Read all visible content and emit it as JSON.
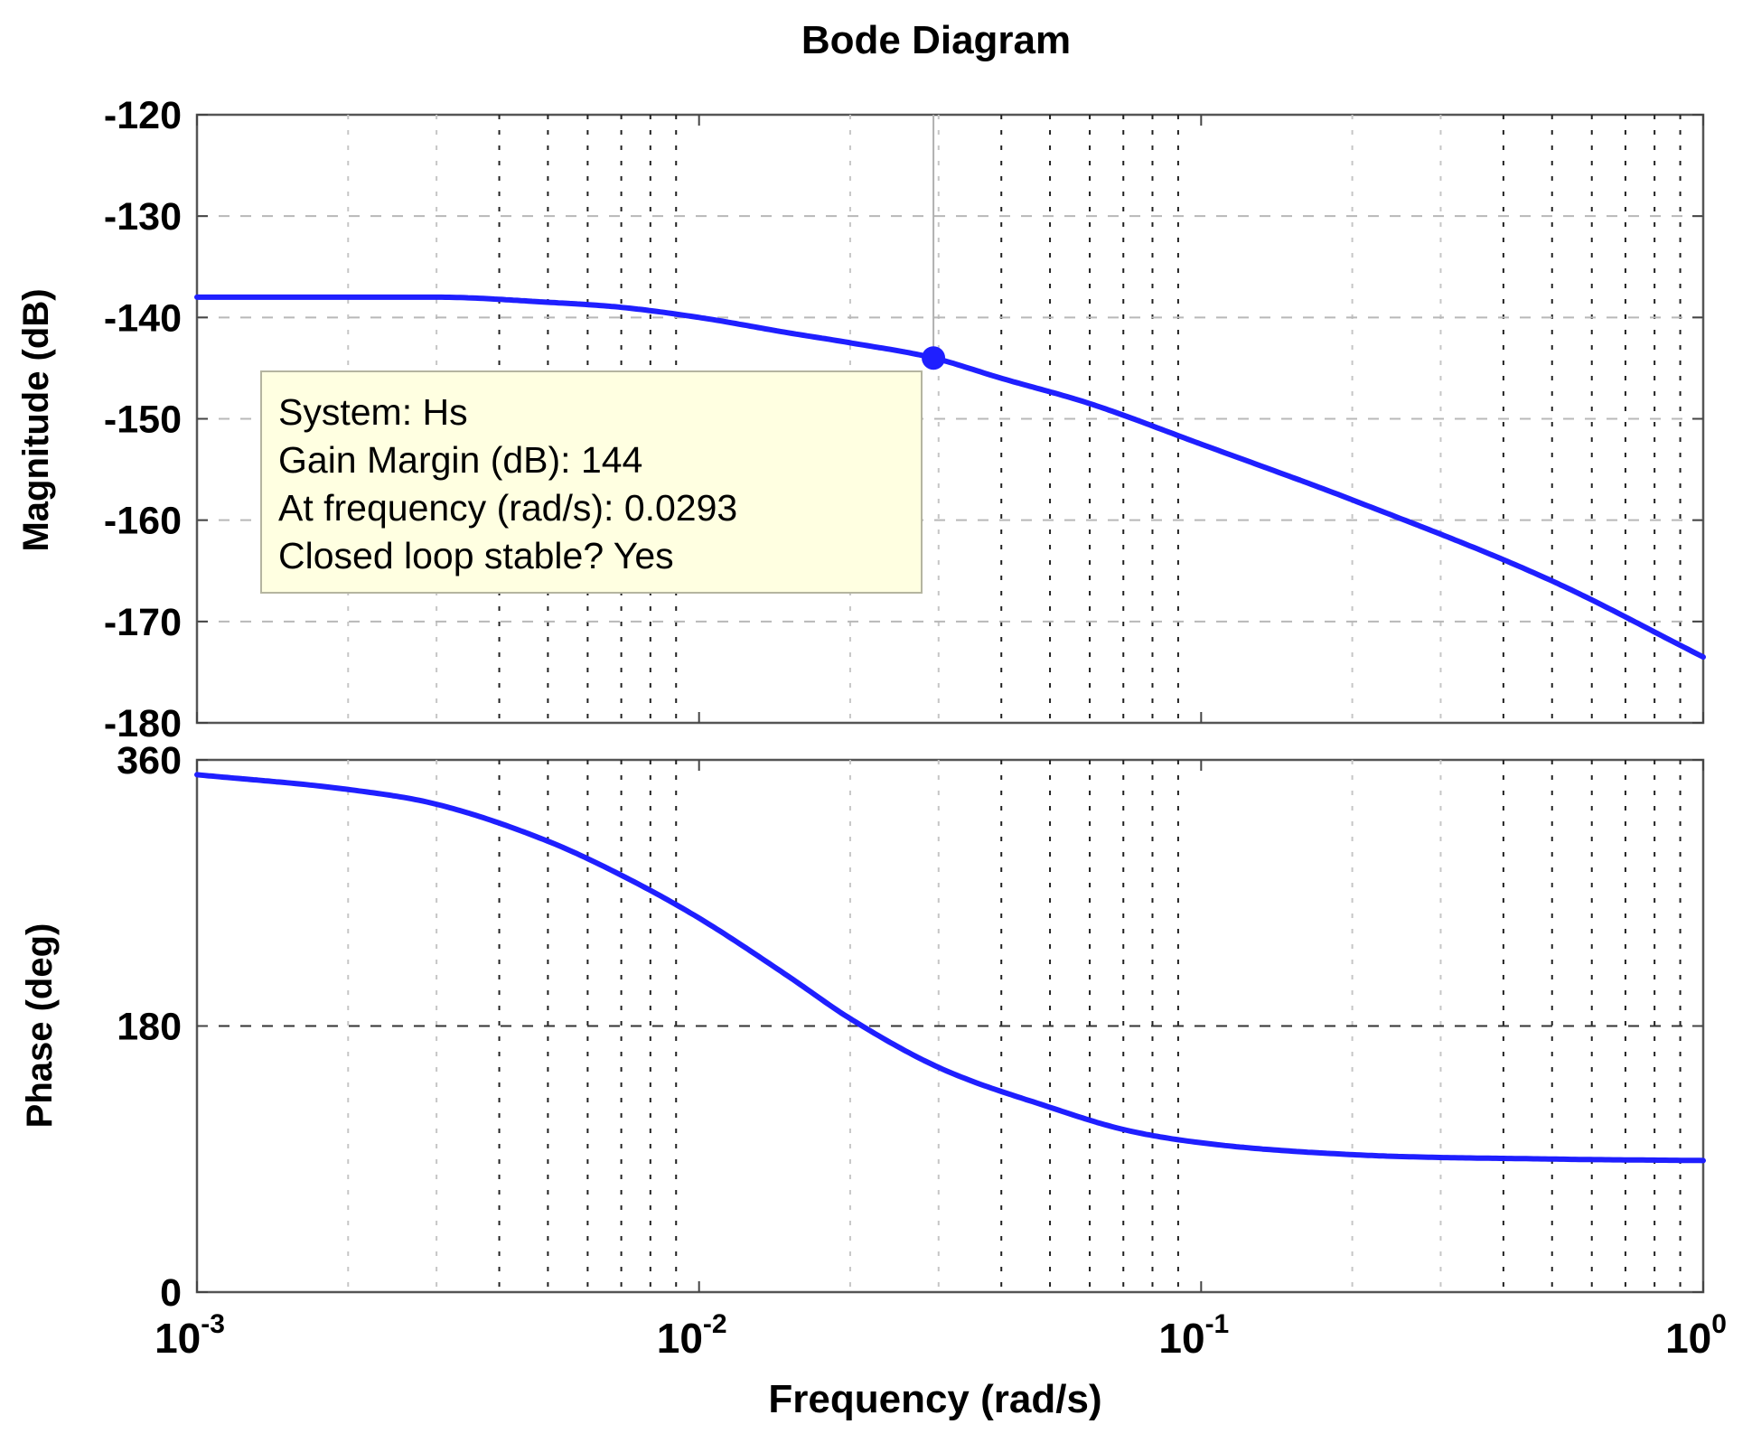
{
  "chart_data": {
    "type": "line",
    "title": "Bode Diagram",
    "xlabel": "Frequency  (rad/s)",
    "xscale": "log",
    "xlim": [
      0.001,
      1
    ],
    "x_ticks": [
      {
        "base": "10",
        "exp": "-3"
      },
      {
        "base": "10",
        "exp": "-2"
      },
      {
        "base": "10",
        "exp": "-1"
      },
      {
        "base": "10",
        "exp": "0"
      }
    ],
    "grid": true,
    "curve_color": "#1f1fff",
    "panels": [
      {
        "name": "magnitude",
        "ylabel": "Magnitude (dB)",
        "ylim": [
          -180,
          -120
        ],
        "yticks": [
          "-120",
          "-130",
          "-140",
          "-150",
          "-160",
          "-170",
          "-180"
        ],
        "series": [
          {
            "name": "Hs",
            "x": [
              0.001,
              0.002,
              0.003,
              0.005,
              0.007,
              0.01,
              0.015,
              0.02,
              0.0293,
              0.04,
              0.06,
              0.1,
              0.2,
              0.5,
              1
            ],
            "y": [
              -138,
              -138,
              -138,
              -138.5,
              -139,
              -140,
              -141.5,
              -142.5,
              -144,
              -146,
              -148.5,
              -152.5,
              -158,
              -166,
              -173.5
            ]
          }
        ],
        "marker": {
          "x": 0.0293,
          "y": -144
        },
        "datatip": {
          "lines": [
            "System: Hs",
            "Gain Margin (dB): 144",
            "At frequency (rad/s): 0.0293",
            "Closed loop stable? Yes"
          ]
        }
      },
      {
        "name": "phase",
        "ylabel": "Phase (deg)",
        "ylim": [
          0,
          360
        ],
        "yticks": [
          "360",
          "180",
          "0"
        ],
        "series": [
          {
            "name": "Hs",
            "x": [
              0.001,
              0.002,
              0.003,
              0.005,
              0.007,
              0.01,
              0.015,
              0.02,
              0.03,
              0.05,
              0.07,
              0.1,
              0.2,
              0.5,
              1
            ],
            "y": [
              350,
              340,
              330,
              305,
              282,
              253,
              214,
              185,
              152,
              125,
              110,
              101,
              93,
              90,
              89
            ]
          }
        ]
      }
    ]
  }
}
